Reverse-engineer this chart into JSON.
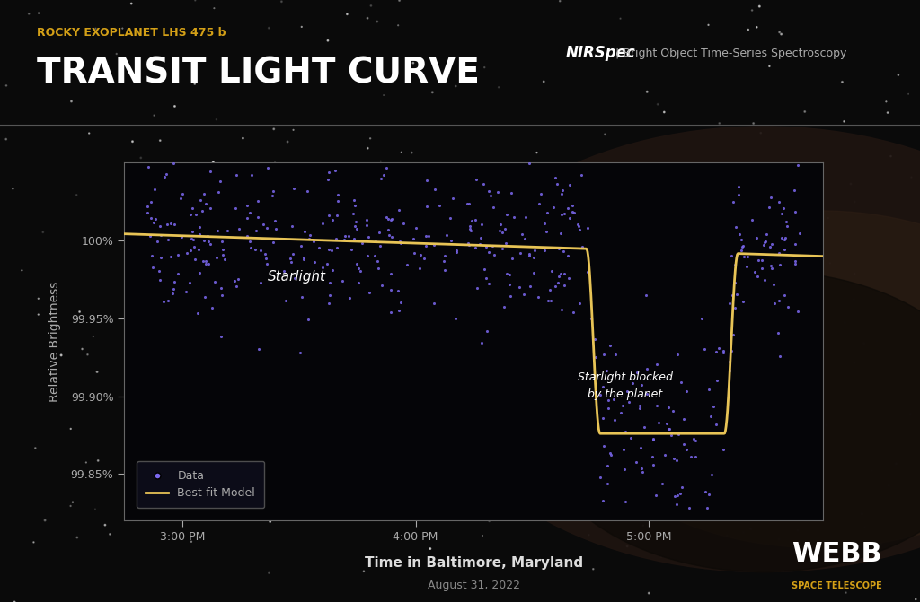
{
  "bg_color": "#0a0a0a",
  "plot_bg_color": "#050508",
  "title_subtitle": "ROCKY EXOPLANET LHS 475 b",
  "title_main": "TRANSIT LIGHT CURVE",
  "subtitle_color": "#d4a017",
  "title_color": "#ffffff",
  "nirspec_label": "NIRSpec",
  "nirspec_desc": "Bright Object Time-Series Spectroscopy",
  "xlabel": "Time in Baltimore, Maryland",
  "xlabel2": "August 31, 2022",
  "ylabel": "Relative Brightness",
  "xtick_labels": [
    "3:00 PM",
    "4:00 PM",
    "5:00 PM"
  ],
  "xtick_positions": [
    0.0,
    60.0,
    120.0
  ],
  "ytick_labels": [
    "99.85%",
    "99.90%",
    "99.95%",
    "100%"
  ],
  "ytick_positions": [
    99.85,
    99.9,
    99.95,
    100.0
  ],
  "ylim": [
    99.82,
    100.05
  ],
  "xlim": [
    -15,
    165
  ],
  "transit_start": 104.0,
  "transit_end": 143.0,
  "transit_depth": 99.876,
  "baseline_start": 100.003,
  "baseline_slope": -8e-05,
  "data_color": "#7b68ee",
  "model_color": "#e8c456",
  "model_linewidth": 2.0,
  "data_scatter_baseline": 0.025,
  "data_scatter_transit": 0.018,
  "annotation_starlight": "Starlight",
  "annotation_blocked": "Starlight blocked\nby the planet",
  "annotation_color": "#ffffff",
  "legend_box_color": "#1a1a2e",
  "legend_box_edge": "#555555",
  "webb_text": "WEBB",
  "webb_sub": "SPACE TELESCOPE",
  "webb_color": "#ffffff",
  "webb_sub_color": "#d4a017",
  "planet_circle_color": "#3d2b1f",
  "separator_color": "#555555",
  "seed": 42
}
